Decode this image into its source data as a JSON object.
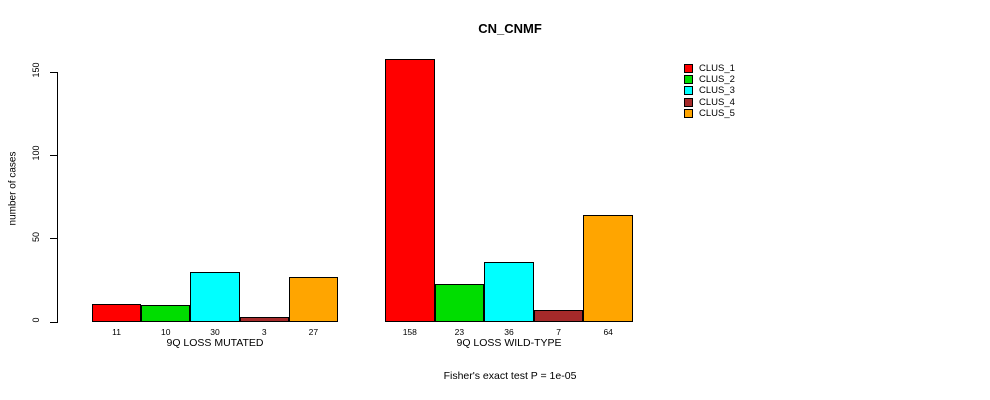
{
  "chart_data": {
    "type": "bar",
    "title": "CN_CNMF",
    "ylabel": "number of cases",
    "xlabel": "",
    "yticks": [
      0,
      50,
      100,
      150
    ],
    "ylim": [
      0,
      158
    ],
    "grid": false,
    "legend_position": "right",
    "categories": [
      "9Q LOSS MUTATED",
      "9Q LOSS WILD-TYPE"
    ],
    "series": [
      {
        "name": "CLUS_1",
        "color": "#ff0000",
        "values": [
          11,
          158
        ]
      },
      {
        "name": "CLUS_2",
        "color": "#00dd00",
        "values": [
          10,
          23
        ]
      },
      {
        "name": "CLUS_3",
        "color": "#00ffff",
        "values": [
          30,
          36
        ]
      },
      {
        "name": "CLUS_4",
        "color": "#a52a2a",
        "values": [
          3,
          7
        ]
      },
      {
        "name": "CLUS_5",
        "color": "#ffa500",
        "values": [
          27,
          64
        ]
      }
    ],
    "bar_value_labels": [
      [
        11,
        10,
        30,
        3,
        27
      ],
      [
        158,
        23,
        36,
        7,
        64
      ]
    ],
    "annotation": "Fisher's exact test P = 1e-05"
  }
}
